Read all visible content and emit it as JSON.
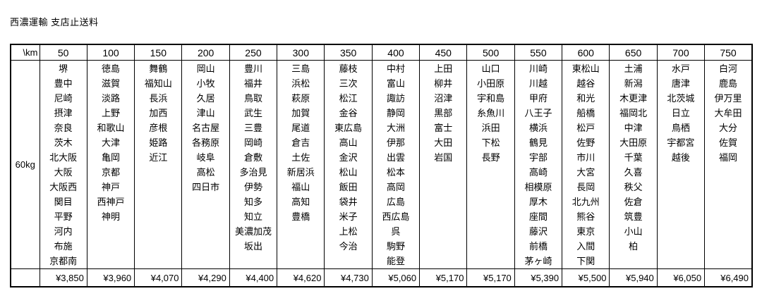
{
  "page": {
    "title": "西濃運輸 支店止送料"
  },
  "table": {
    "corner_label": "\\km",
    "weight_label": "60kg",
    "columns": [
      {
        "km": "50",
        "price": "¥3,850",
        "cities": [
          "堺",
          "豊中",
          "尼崎",
          "摂津",
          "奈良",
          "茨木",
          "北大阪",
          "大阪",
          "大阪西",
          "関目",
          "平野",
          "河内",
          "布施",
          "京都南"
        ]
      },
      {
        "km": "100",
        "price": "¥3,960",
        "cities": [
          "徳島",
          "滋賀",
          "淡路",
          "上野",
          "和歌山",
          "大津",
          "亀岡",
          "京都",
          "神戸",
          "西神戸",
          "神明"
        ]
      },
      {
        "km": "150",
        "price": "¥4,070",
        "cities": [
          "舞鶴",
          "福知山",
          "長浜",
          "加西",
          "彦根",
          "姫路",
          "近江"
        ]
      },
      {
        "km": "200",
        "price": "¥4,290",
        "cities": [
          "岡山",
          "小牧",
          "久居",
          "津山",
          "名古屋",
          "各務原",
          "岐阜",
          "高松",
          "四日市"
        ]
      },
      {
        "km": "250",
        "price": "¥4,400",
        "cities": [
          "豊川",
          "福井",
          "鳥取",
          "武生",
          "三豊",
          "岡崎",
          "倉敷",
          "多治見",
          "伊勢",
          "知多",
          "知立",
          "美濃加茂",
          "坂出"
        ]
      },
      {
        "km": "300",
        "price": "¥4,620",
        "cities": [
          "三島",
          "浜松",
          "萩原",
          "加賀",
          "尾道",
          "倉吉",
          "土佐",
          "新居浜",
          "福山",
          "高知",
          "豊橋"
        ]
      },
      {
        "km": "350",
        "price": "¥4,730",
        "cities": [
          "藤枝",
          "三次",
          "松江",
          "金谷",
          "東広島",
          "高山",
          "金沢",
          "松山",
          "飯田",
          "袋井",
          "米子",
          "上松",
          "今治"
        ]
      },
      {
        "km": "400",
        "price": "¥5,060",
        "cities": [
          "中村",
          "富山",
          "諏訪",
          "静岡",
          "大洲",
          "伊那",
          "出雲",
          "松本",
          "高岡",
          "広島",
          "西広島",
          "呉",
          "駒野",
          "能登"
        ]
      },
      {
        "km": "450",
        "price": "¥5,170",
        "cities": [
          "上田",
          "柳井",
          "沼津",
          "黒部",
          "富士",
          "大田",
          "岩国"
        ]
      },
      {
        "km": "500",
        "price": "¥5,170",
        "cities": [
          "山口",
          "小田原",
          "宇和島",
          "糸魚川",
          "浜田",
          "下松",
          "長野"
        ]
      },
      {
        "km": "550",
        "price": "¥5,390",
        "cities": [
          "川崎",
          "川越",
          "甲府",
          "八王子",
          "横浜",
          "鶴見",
          "宇部",
          "高崎",
          "相模原",
          "厚木",
          "座間",
          "藤沢",
          "前橋",
          "茅ヶ崎"
        ]
      },
      {
        "km": "600",
        "price": "¥5,500",
        "cities": [
          "東松山",
          "越谷",
          "和光",
          "船橋",
          "松戸",
          "佐野",
          "市川",
          "大宮",
          "長岡",
          "北九州",
          "熊谷",
          "東京",
          "入間",
          "下関"
        ]
      },
      {
        "km": "650",
        "price": "¥5,940",
        "cities": [
          "土浦",
          "新潟",
          "木更津",
          "福岡北",
          "中津",
          "大田原",
          "千葉",
          "久喜",
          "秩父",
          "佐倉",
          "筑豊",
          "小山",
          "柏"
        ]
      },
      {
        "km": "700",
        "price": "¥6,050",
        "cities": [
          "水戸",
          "唐津",
          "北茨城",
          "日立",
          "鳥栖",
          "宇都宮",
          "越後"
        ]
      },
      {
        "km": "750",
        "price": "¥6,490",
        "cities": [
          "白河",
          "鹿島",
          "伊万里",
          "大牟田",
          "大分",
          "佐賀",
          "福岡"
        ]
      }
    ]
  },
  "colors": {
    "background": "#ffffff",
    "text": "#000000",
    "border": "#000000"
  }
}
